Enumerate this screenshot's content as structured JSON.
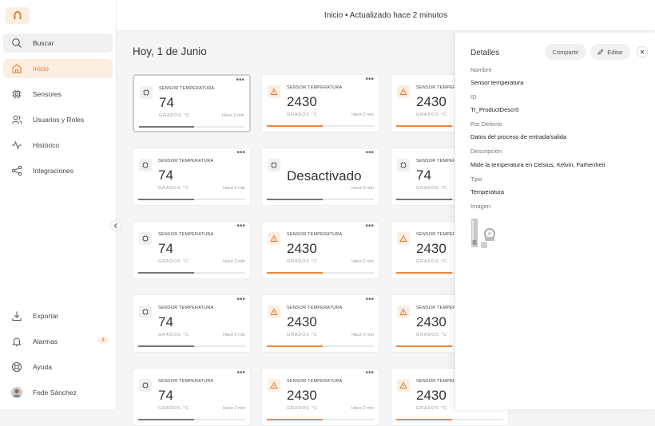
{
  "topbar": {
    "status": "Inicio • Actualizado hace 2 minutos"
  },
  "sidebar": {
    "items": [
      {
        "label": "Buscar",
        "icon": "search-icon"
      },
      {
        "label": "Inicio",
        "icon": "home-icon"
      },
      {
        "label": "Sensores",
        "icon": "chip-icon"
      },
      {
        "label": "Usuarios y Roles",
        "icon": "users-icon"
      },
      {
        "label": "Histórico",
        "icon": "activity-icon"
      },
      {
        "label": "Integraciones",
        "icon": "share-icon"
      }
    ],
    "bottom": [
      {
        "label": "Exportar",
        "icon": "download-icon"
      },
      {
        "label": "Alarmas",
        "icon": "bell-icon",
        "badge": "4"
      },
      {
        "label": "Ayuda",
        "icon": "lifebuoy-icon"
      },
      {
        "label": "Fede Sánchez",
        "icon": "avatar"
      }
    ]
  },
  "main": {
    "date_title": "Hoy, 1 de Junio"
  },
  "cards": {
    "title": "SENSOR TEMPERATURA",
    "unit": "GRADOS °C",
    "time": "Hace 2 min",
    "value_normal": "74",
    "value_alert": "2430",
    "value_off": "Desactivado"
  },
  "panel": {
    "title": "Detalles",
    "share_label": "Compartir",
    "edit_label": "Editar",
    "fields": [
      {
        "label": "Nombre",
        "value": "Sensor temperatura"
      },
      {
        "label": "ID",
        "value": "TI_ProductDescr0"
      },
      {
        "label": "Por Defecto",
        "value": "Datos del proceso de entrada/salida"
      },
      {
        "label": "Descripción",
        "value": "Mide la temperatura en Celsius, Kelvin, Farhenheit"
      },
      {
        "label": "Tipo",
        "value": "Temperatura"
      }
    ],
    "image_label": "Imagen"
  },
  "colors": {
    "accent": "#f0863a",
    "accent_bg": "#fdeee2"
  }
}
